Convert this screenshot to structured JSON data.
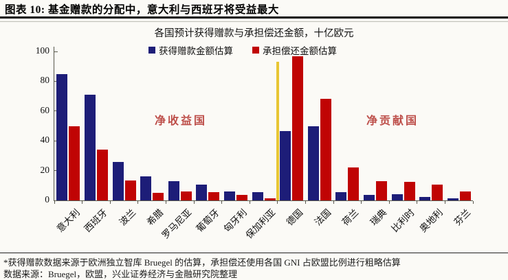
{
  "header": {
    "title": "图表 10: 基金赠款的分配中，意大利与西班牙将受益最大"
  },
  "chart": {
    "subtitle": "各国预计获得赠款与承担偿还金额，十亿欧元",
    "legend": [
      {
        "label": "获得赠款金额估算",
        "color": "#1d1d78"
      },
      {
        "label": "承担偿还金额估算",
        "color": "#c00404"
      }
    ],
    "annotations": [
      {
        "text": "净收益国",
        "color": "#bd4e49"
      },
      {
        "text": "净贡献国",
        "color": "#bd4e49"
      }
    ]
  },
  "chart_data": {
    "type": "bar",
    "title": "各国预计获得赠款与承担偿还金额，十亿欧元",
    "categories": [
      "意大利",
      "西班牙",
      "波兰",
      "希腊",
      "罗马尼亚",
      "葡萄牙",
      "匈牙利",
      "保加利亚",
      "德国",
      "法国",
      "荷兰",
      "瑞典",
      "比利时",
      "奥地利",
      "芬兰"
    ],
    "series": [
      {
        "name": "获得赠款金额估算",
        "color": "#1d1d78",
        "values": [
          85,
          71,
          26,
          16,
          13,
          10.5,
          6,
          5.5,
          46.5,
          50,
          5.5,
          3.5,
          4,
          2.5,
          1.5
        ]
      },
      {
        "name": "承担偿还金额估算",
        "color": "#c00404",
        "values": [
          50,
          34,
          13.5,
          5,
          6,
          5.5,
          3.5,
          1.5,
          97,
          68,
          22,
          13,
          12.5,
          10.5,
          6
        ]
      }
    ],
    "xlabel": "",
    "ylabel": "",
    "ylim": [
      0,
      100
    ],
    "yticks": [
      0,
      20,
      40,
      60,
      80,
      100
    ],
    "grid": false,
    "legend_position": "top-center",
    "divider": {
      "after_category_index": 7,
      "color": "#e8c633",
      "height_value": 93
    }
  },
  "footnote": {
    "line1": "*获得赠款数据来源于欧洲独立智库 Bruegel 的估算，承担偿还使用各国 GNI 占欧盟比例进行粗略估算",
    "line2": "数据来源：Bruegel，欧盟，兴业证券经济与金融研究院整理"
  }
}
